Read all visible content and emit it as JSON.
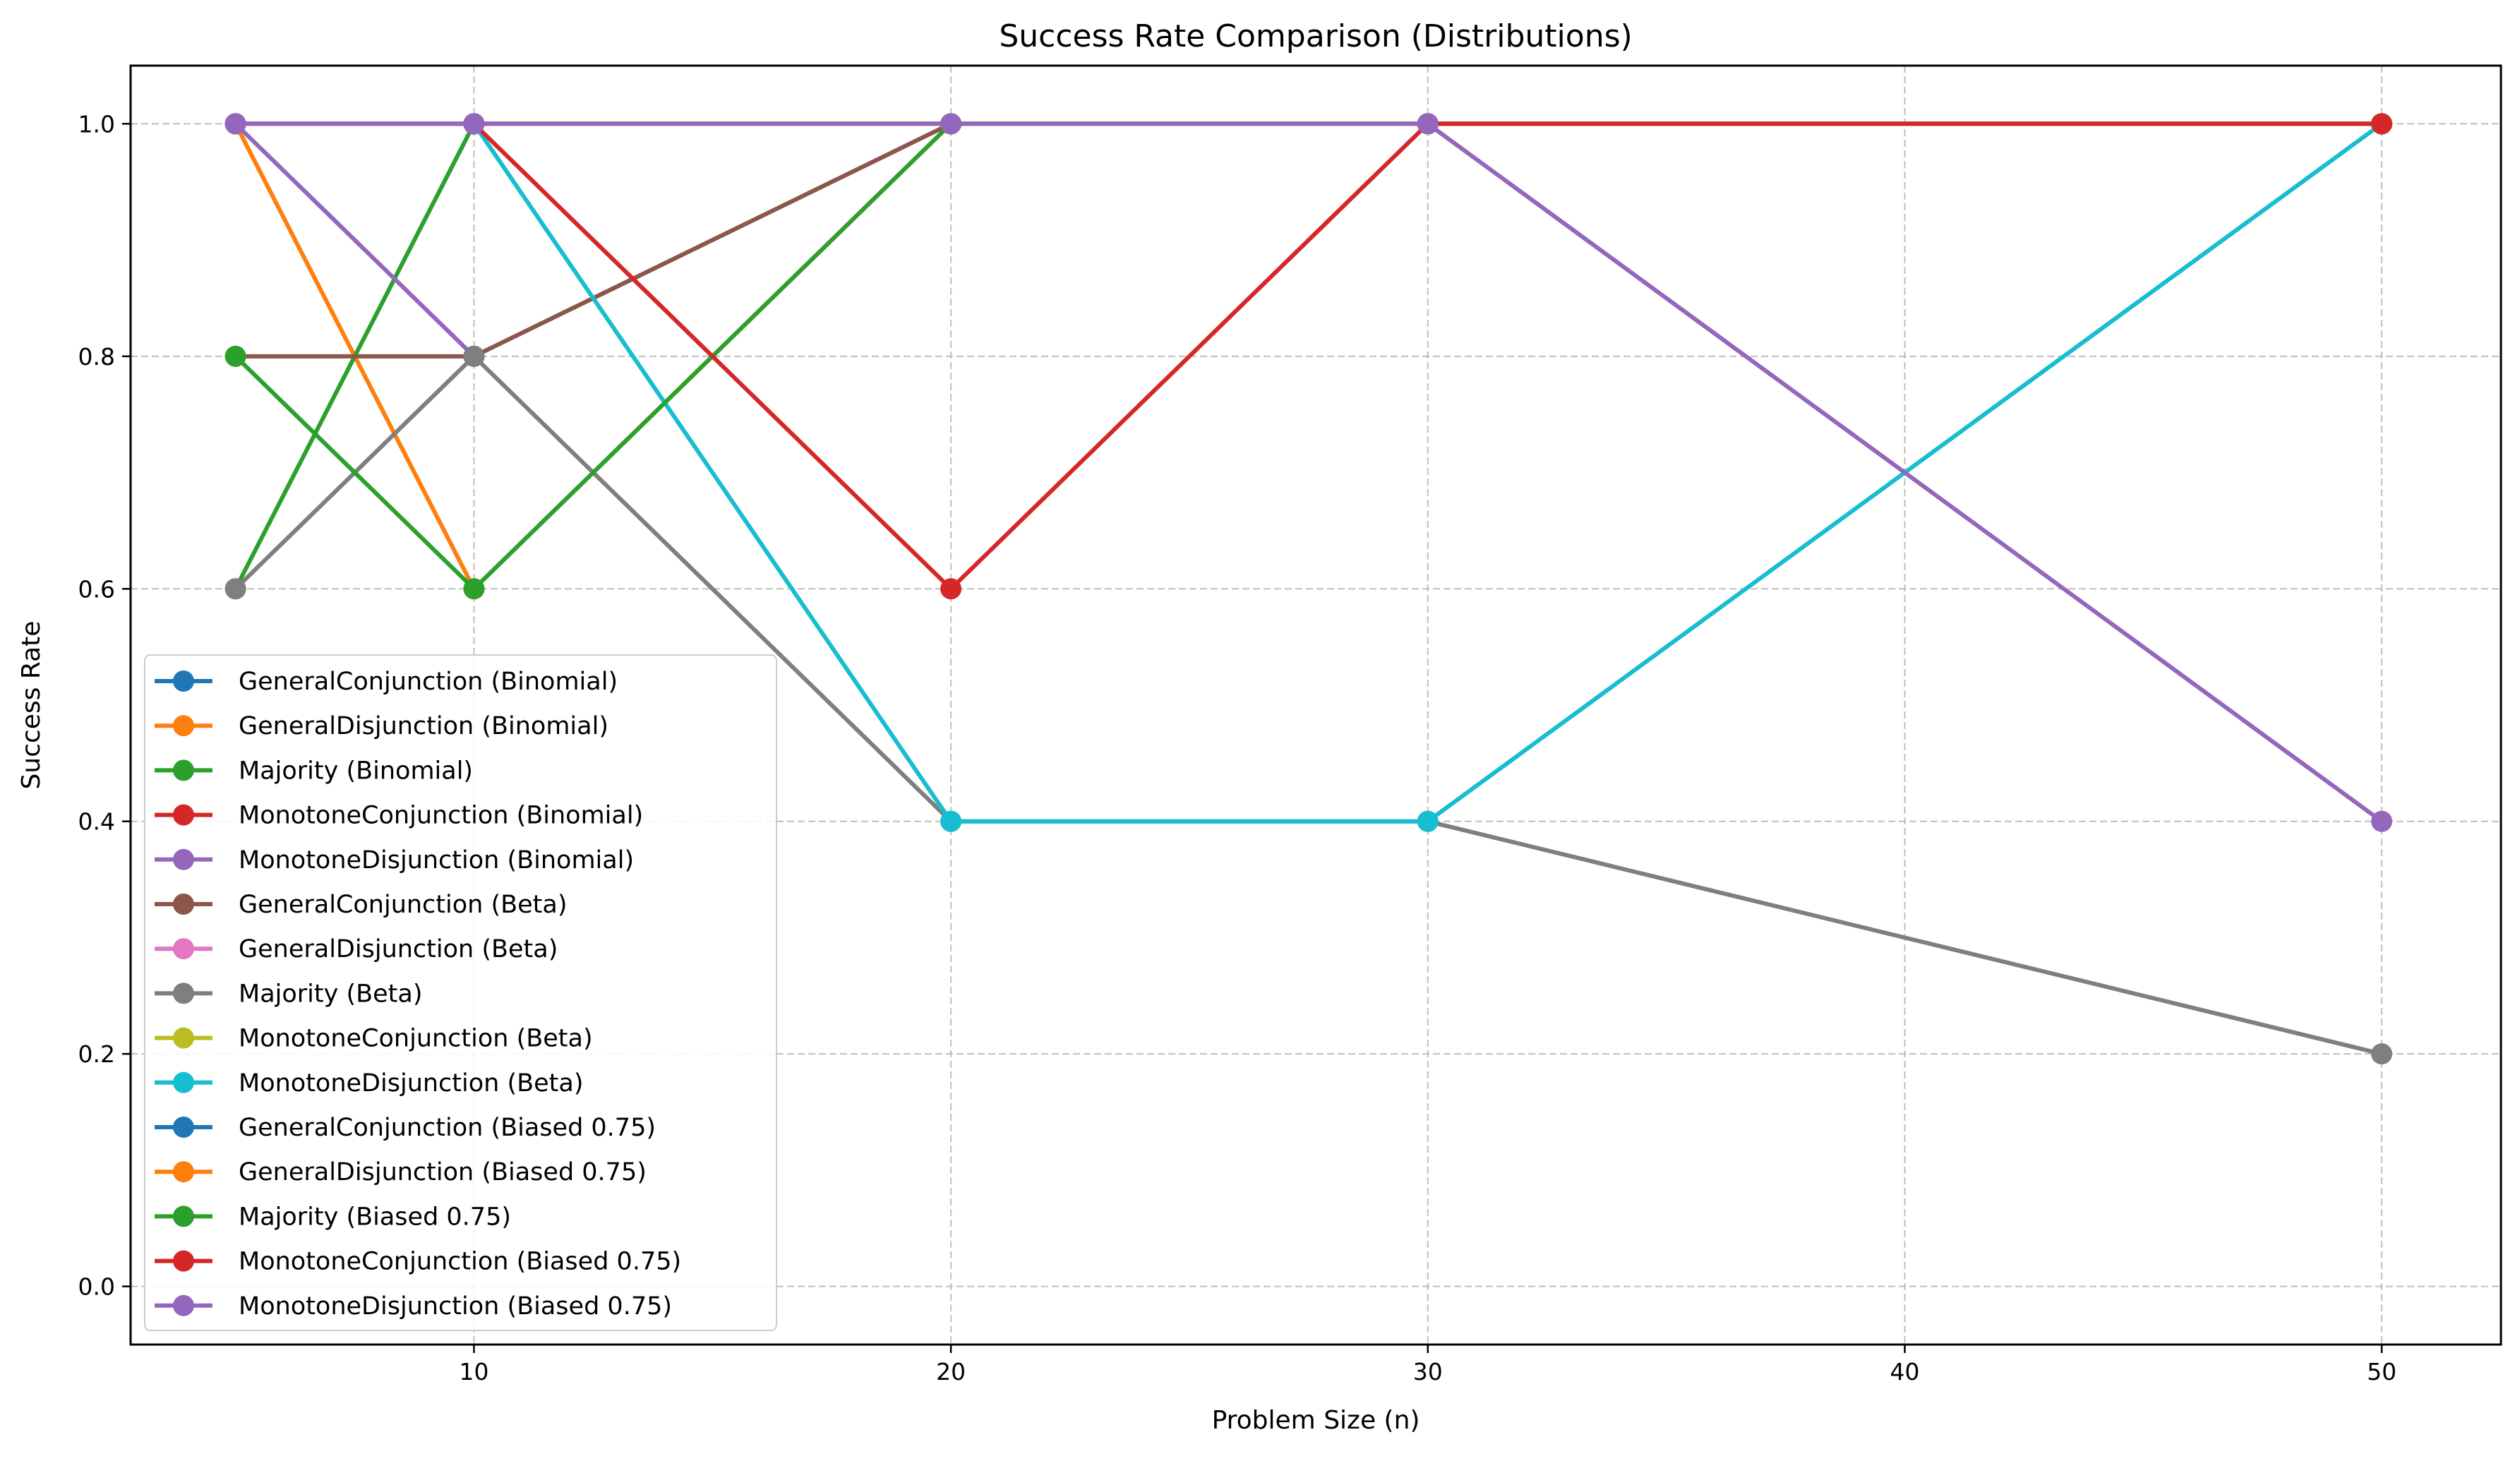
{
  "chart_data": {
    "type": "line",
    "title": "Success Rate Comparison (Distributions)",
    "xlabel": "Problem Size (n)",
    "ylabel": "Success Rate",
    "xlim": [
      2.8,
      52.5
    ],
    "ylim": [
      -0.05,
      1.05
    ],
    "xticks": [
      10,
      20,
      30,
      40,
      50
    ],
    "yticks": [
      0.0,
      0.2,
      0.4,
      0.6,
      0.8,
      1.0
    ],
    "xtick_labels": [
      "10",
      "20",
      "30",
      "40",
      "50"
    ],
    "ytick_labels": [
      "0.0",
      "0.2",
      "0.4",
      "0.6",
      "0.8",
      "1.0"
    ],
    "grid": true,
    "legend_position": "lower-left",
    "x": [
      5,
      10,
      20,
      30,
      50
    ],
    "series": [
      {
        "name": "GeneralConjunction (Binomial)",
        "color": "#1f77b4",
        "values": [
          1.0,
          1.0,
          1.0,
          1.0,
          1.0
        ]
      },
      {
        "name": "GeneralDisjunction (Binomial)",
        "color": "#ff7f0e",
        "values": [
          1.0,
          0.6,
          1.0,
          1.0,
          1.0
        ]
      },
      {
        "name": "Majority (Binomial)",
        "color": "#2ca02c",
        "values": [
          0.6,
          1.0,
          1.0,
          1.0,
          1.0
        ]
      },
      {
        "name": "MonotoneConjunction (Binomial)",
        "color": "#d62728",
        "values": [
          1.0,
          1.0,
          1.0,
          1.0,
          1.0
        ]
      },
      {
        "name": "MonotoneDisjunction (Binomial)",
        "color": "#9467bd",
        "values": [
          1.0,
          0.8,
          1.0,
          1.0,
          1.0
        ]
      },
      {
        "name": "GeneralConjunction (Beta)",
        "color": "#8c564b",
        "values": [
          0.8,
          0.8,
          1.0,
          1.0,
          1.0
        ]
      },
      {
        "name": "GeneralDisjunction (Beta)",
        "color": "#e377c2",
        "values": [
          1.0,
          1.0,
          1.0,
          1.0,
          1.0
        ]
      },
      {
        "name": "Majority (Beta)",
        "color": "#7f7f7f",
        "values": [
          0.6,
          0.8,
          0.4,
          0.4,
          0.2
        ]
      },
      {
        "name": "MonotoneConjunction (Beta)",
        "color": "#bcbd22",
        "values": [
          1.0,
          1.0,
          1.0,
          1.0,
          1.0
        ]
      },
      {
        "name": "MonotoneDisjunction (Beta)",
        "color": "#17becf",
        "values": [
          1.0,
          1.0,
          0.4,
          0.4,
          1.0
        ]
      },
      {
        "name": "GeneralConjunction (Biased 0.75)",
        "color": "#1f77b4",
        "values": [
          1.0,
          1.0,
          1.0,
          1.0,
          1.0
        ]
      },
      {
        "name": "GeneralDisjunction (Biased 0.75)",
        "color": "#ff7f0e",
        "values": [
          1.0,
          1.0,
          1.0,
          1.0,
          1.0
        ]
      },
      {
        "name": "Majority (Biased 0.75)",
        "color": "#2ca02c",
        "values": [
          0.8,
          0.6,
          1.0,
          1.0,
          1.0
        ]
      },
      {
        "name": "MonotoneConjunction (Biased 0.75)",
        "color": "#d62728",
        "values": [
          1.0,
          1.0,
          0.6,
          1.0,
          1.0
        ]
      },
      {
        "name": "MonotoneDisjunction (Biased 0.75)",
        "color": "#9467bd",
        "values": [
          1.0,
          1.0,
          1.0,
          1.0,
          0.4
        ]
      }
    ]
  }
}
